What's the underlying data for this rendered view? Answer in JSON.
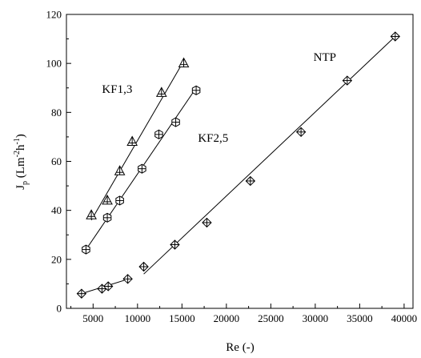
{
  "chart_data": {
    "type": "scatter",
    "xlabel": "Re (-)",
    "ylabel": {
      "main": "J",
      "sub": "p",
      "units_open": " (Lm",
      "exp1": "-2",
      "mid": "h",
      "exp2": "-1",
      "units_close": ")"
    },
    "xlim": [
      2000,
      41000
    ],
    "ylim": [
      0,
      120
    ],
    "x_ticks": [
      5000,
      10000,
      15000,
      20000,
      25000,
      30000,
      35000,
      40000
    ],
    "x_tick_labels": [
      "5000",
      "10000",
      "15000",
      "20000",
      "25000",
      "30000",
      "35000",
      "40000"
    ],
    "y_ticks": [
      0,
      20,
      40,
      60,
      80,
      100,
      120
    ],
    "y_tick_labels": [
      "0",
      "20",
      "40",
      "60",
      "80",
      "100",
      "120"
    ],
    "grid": false,
    "series": [
      {
        "name": "KF1,3",
        "marker": "triangle-cross",
        "x": [
          4800,
          6600,
          8000,
          9400,
          12700,
          15200
        ],
        "y": [
          38,
          44,
          56,
          68,
          88,
          100
        ],
        "fit": [
          [
            4800,
            36
          ],
          [
            15200,
            101
          ]
        ]
      },
      {
        "name": "KF2,5",
        "marker": "hexagon-cross",
        "x": [
          4200,
          6600,
          8000,
          10500,
          12400,
          14300,
          16600
        ],
        "y": [
          24,
          37,
          44,
          57,
          71,
          76,
          89
        ],
        "fit": [
          [
            4200,
            24
          ],
          [
            16600,
            90
          ]
        ]
      },
      {
        "name": "NTP",
        "marker": "diamond-cross",
        "x": [
          3700,
          6000,
          6700,
          8900,
          10700,
          14200,
          17800,
          22700,
          28400,
          33600,
          39000
        ],
        "y": [
          6,
          8,
          9,
          12,
          17,
          26,
          35,
          52,
          72,
          93,
          111
        ],
        "fit": [
          [
            3700,
            6
          ],
          [
            9000,
            12
          ],
          [
            10700,
            14
          ],
          [
            39000,
            111
          ]
        ]
      }
    ],
    "annotations": [
      {
        "text": "KF1,3",
        "x": 6000,
        "y": 88
      },
      {
        "text": "KF2,5",
        "x": 16800,
        "y": 68
      },
      {
        "text": "NTP",
        "x": 29800,
        "y": 101
      }
    ]
  }
}
